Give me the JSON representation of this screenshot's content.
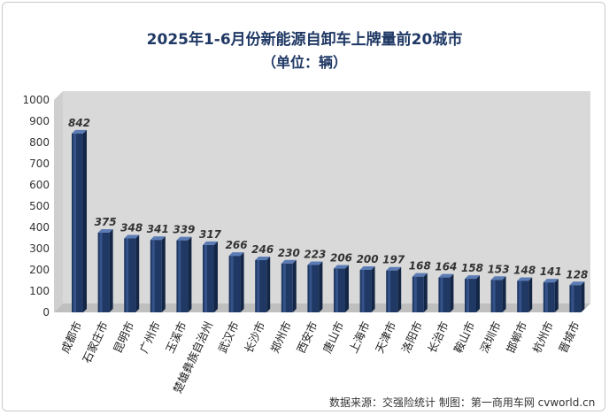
{
  "title": "2025年1-6月份新能源自卸车上牌量前20城市",
  "subtitle": "（单位：辆）",
  "source": "数据来源：交强险统计 制图：第一商用车网 cvworld.cn",
  "colors": {
    "bar_front": "#1f3864",
    "bar_highlight": "#3e5f98",
    "bar_side": "#142645",
    "bar_top": "#5b7bb5",
    "title": "#1f3864",
    "wall": "#d9d9d9",
    "floor": "#bfbfbf"
  },
  "chart_data": {
    "type": "bar",
    "title": "2025年1-6月份新能源自卸车上牌量前20城市",
    "subtitle": "（单位：辆）",
    "xlabel": "",
    "ylabel": "",
    "ylim": [
      0,
      1000
    ],
    "yticks": [
      0,
      100,
      200,
      300,
      400,
      500,
      600,
      700,
      800,
      900,
      1000
    ],
    "grid": false,
    "legend": "none",
    "categories": [
      "成都市",
      "石家庄市",
      "昆明市",
      "广州市",
      "玉溪市",
      "楚雄彝族自治州",
      "武汉市",
      "长沙市",
      "郑州市",
      "西安市",
      "唐山市",
      "上海市",
      "天津市",
      "洛阳市",
      "长治市",
      "鞍山市",
      "深圳市",
      "邯郸市",
      "杭州市",
      "晋城市"
    ],
    "values": [
      842,
      375,
      348,
      341,
      339,
      317,
      266,
      246,
      230,
      223,
      206,
      200,
      197,
      168,
      164,
      158,
      153,
      148,
      141,
      128
    ]
  }
}
